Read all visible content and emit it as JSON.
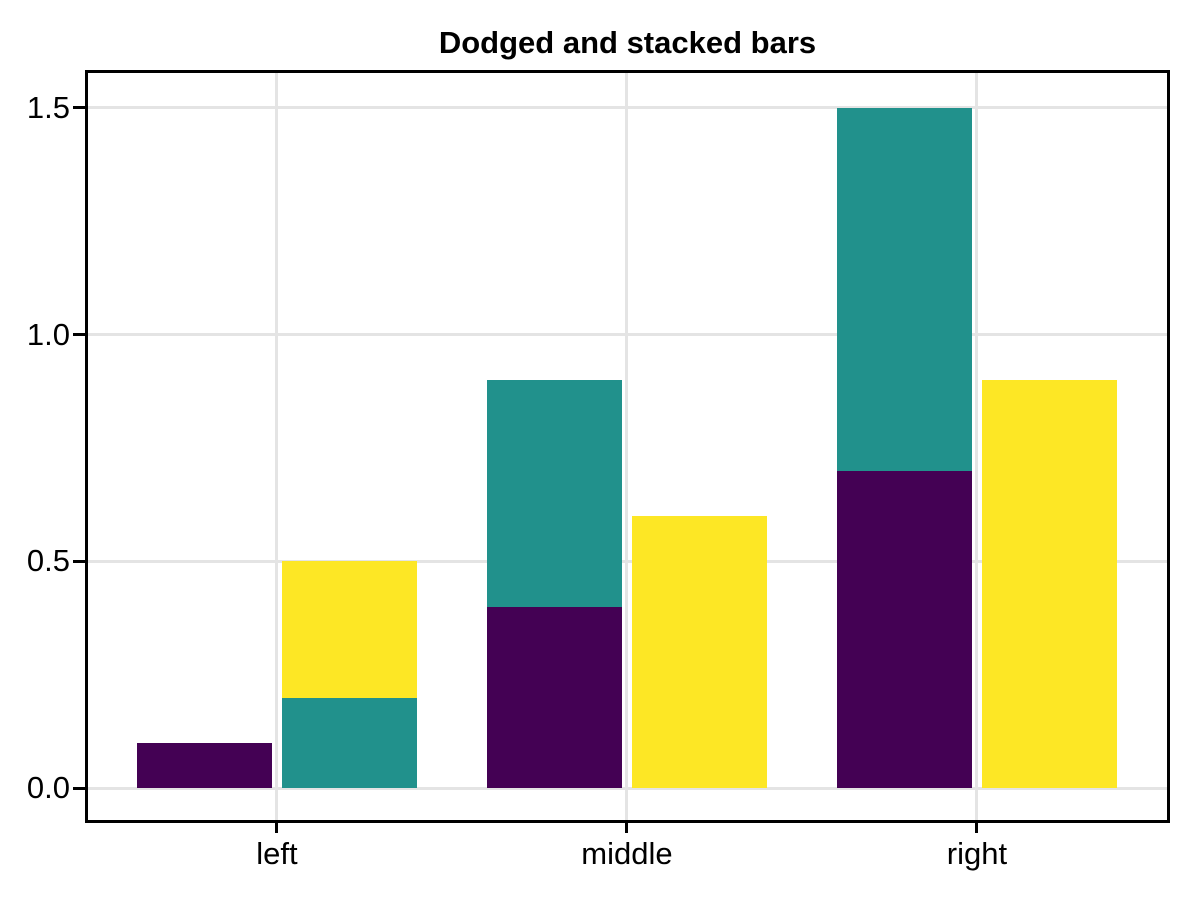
{
  "figure": {
    "background": "#ffffff"
  },
  "chart_data": {
    "type": "bar",
    "title": "Dodged and stacked bars",
    "xlabel": "",
    "ylabel": "",
    "categories": [
      "left",
      "middle",
      "right"
    ],
    "x_positions": [
      1,
      2,
      3
    ],
    "yticks": [
      {
        "value": 0.0,
        "label": "0.0"
      },
      {
        "value": 0.5,
        "label": "0.5"
      },
      {
        "value": 1.0,
        "label": "1.0"
      },
      {
        "value": 1.5,
        "label": "1.5"
      }
    ],
    "ylim": [
      -0.07,
      1.577
    ],
    "xlim": [
      0.46,
      3.543
    ],
    "grid": true,
    "legend": "none",
    "bar_width": 0.388,
    "dodge_offset": 0.207,
    "colors": {
      "purple": "#440154",
      "teal": "#21918c",
      "yellow": "#fde725"
    },
    "axis": {
      "spine_color": "#000000",
      "grid_color": "#e4e4e4",
      "tick_color": "#000000",
      "label_color": "#000000"
    },
    "bars": [
      {
        "category": "left",
        "dodge": 1,
        "segments": [
          {
            "color": "purple",
            "value": 0.1
          }
        ]
      },
      {
        "category": "left",
        "dodge": 2,
        "segments": [
          {
            "color": "teal",
            "value": 0.2
          },
          {
            "color": "yellow",
            "value": 0.3
          }
        ]
      },
      {
        "category": "middle",
        "dodge": 1,
        "segments": [
          {
            "color": "purple",
            "value": 0.4
          },
          {
            "color": "teal",
            "value": 0.5
          }
        ]
      },
      {
        "category": "middle",
        "dodge": 2,
        "segments": [
          {
            "color": "yellow",
            "value": 0.6
          }
        ]
      },
      {
        "category": "right",
        "dodge": 1,
        "segments": [
          {
            "color": "purple",
            "value": 0.7
          },
          {
            "color": "teal",
            "value": 0.8
          }
        ]
      },
      {
        "category": "right",
        "dodge": 2,
        "segments": [
          {
            "color": "yellow",
            "value": 0.9
          }
        ]
      }
    ]
  }
}
